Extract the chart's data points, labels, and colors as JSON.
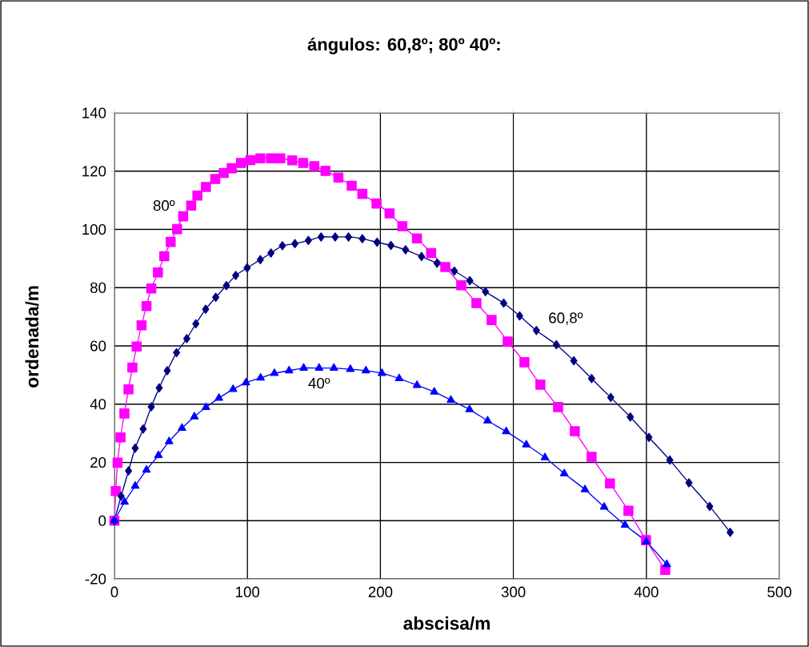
{
  "chart_data": {
    "type": "line",
    "title": "ángulos:  60,8º; 80º 40º:",
    "xlabel": "abscisa/m",
    "ylabel": "ordenada/m",
    "xlim": [
      0,
      500
    ],
    "ylim": [
      -20,
      140
    ],
    "xticks": [
      0,
      100,
      200,
      300,
      400,
      500
    ],
    "yticks": [
      -20,
      0,
      20,
      40,
      60,
      80,
      100,
      120,
      140
    ],
    "grid": true,
    "series": [
      {
        "color": "#ff00ff",
        "marker": "square",
        "x": [
          0,
          1.0,
          2.4,
          4.6,
          7.5,
          10.6,
          13.5,
          16.7,
          20.4,
          24.1,
          27.7,
          32.7,
          37.5,
          42.3,
          47.1,
          51.7,
          57.7,
          62.4,
          68.8,
          75.8,
          82.2,
          88.2,
          95.2,
          102.2,
          109.7,
          117.7,
          124.7,
          133.7,
          141.9,
          150.3,
          158.7,
          168.4,
          178.4,
          186.4,
          197.1,
          206.9,
          216.5,
          227.5,
          238.1,
          248.8,
          260.8,
          272.2,
          283.6,
          295.7,
          308.3,
          320.3,
          333.6,
          346.2,
          358.8,
          372.6,
          386.5,
          399.7,
          414.2
        ],
        "values": [
          0,
          10.2,
          19.9,
          28.6,
          36.8,
          45.1,
          52.6,
          59.8,
          67.1,
          73.7,
          79.7,
          85.2,
          90.8,
          95.7,
          100.1,
          104.5,
          108.2,
          111.6,
          114.6,
          117.3,
          119.4,
          121.0,
          122.8,
          123.8,
          124.4,
          124.4,
          124.4,
          123.7,
          122.8,
          121.7,
          120.1,
          117.8,
          115.0,
          112.2,
          108.9,
          105.5,
          101.1,
          96.9,
          91.9,
          87.1,
          80.8,
          74.7,
          68.9,
          61.5,
          54.4,
          46.7,
          39.0,
          30.7,
          21.9,
          12.8,
          3.4,
          -6.7,
          -16.9
        ]
      },
      {
        "color": "#000080",
        "marker": "diamond",
        "x": [
          0,
          5.0,
          10.6,
          15.6,
          21.6,
          27.7,
          33.7,
          39.7,
          46.7,
          54.4,
          61.2,
          68.6,
          76.2,
          84.2,
          91.2,
          99.8,
          109.7,
          117.7,
          126.3,
          135.7,
          145.8,
          155.4,
          166.0,
          176.0,
          186.4,
          197.5,
          207.9,
          218.9,
          230.9,
          242.6,
          255.6,
          267.2,
          279.0,
          292.7,
          304.7,
          317.3,
          332.3,
          345.4,
          358.8,
          373.2,
          387.9,
          401.9,
          417.6,
          432.0,
          447.6,
          463.0
        ],
        "values": [
          0,
          8.4,
          17.1,
          24.9,
          31.5,
          39.1,
          45.6,
          51.5,
          57.7,
          62.5,
          67.6,
          72.6,
          76.7,
          80.7,
          84.2,
          86.8,
          89.6,
          91.9,
          94.4,
          95.1,
          96.2,
          97.4,
          97.4,
          97.4,
          96.8,
          95.6,
          94.5,
          93.0,
          90.7,
          88.4,
          85.7,
          82.4,
          78.6,
          74.7,
          70.3,
          65.3,
          60.4,
          54.9,
          48.8,
          42.3,
          35.6,
          28.6,
          20.8,
          13.0,
          4.9,
          -4.0
        ]
      },
      {
        "color": "#0000ff",
        "marker": "triangle",
        "x": [
          0,
          7.6,
          15.6,
          24.1,
          33.1,
          41.1,
          50.8,
          60.1,
          68.8,
          78.6,
          89.2,
          98.9,
          109.9,
          120.3,
          131.3,
          142.3,
          153.9,
          165.0,
          177.4,
          189.1,
          201.1,
          214.1,
          227.5,
          240.5,
          253.0,
          267.0,
          280.6,
          294.6,
          309.7,
          323.7,
          338.2,
          353.8,
          368.2,
          383.9,
          399.9,
          415.3
        ],
        "values": [
          0,
          6.4,
          11.9,
          17.4,
          22.4,
          27.2,
          31.8,
          35.7,
          38.9,
          42.1,
          45.1,
          47.4,
          49.0,
          50.6,
          51.5,
          52.4,
          52.4,
          52.4,
          52.0,
          51.5,
          50.6,
          48.8,
          46.5,
          44.2,
          41.4,
          38.2,
          34.3,
          30.6,
          26.1,
          21.7,
          16.2,
          10.7,
          4.7,
          -1.5,
          -7.2,
          -15.0
        ]
      }
    ],
    "annotations": [
      {
        "text": "80º",
        "x": 57.7,
        "y": 108.2
      },
      {
        "text": "60,8º",
        "x": 317.3,
        "y": 65.3
      },
      {
        "text": "40º",
        "x": 153.9,
        "y": 52.4
      }
    ]
  }
}
